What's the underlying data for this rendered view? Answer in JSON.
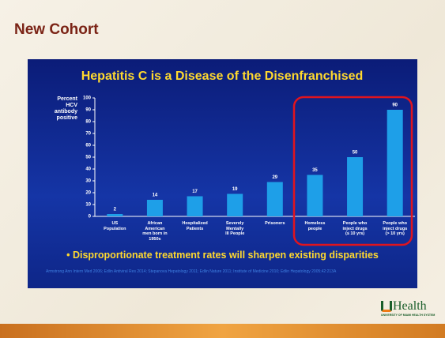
{
  "slide_title": "New Cohort",
  "chart_data": {
    "type": "bar",
    "title": "Hepatitis C is a Disease of the Disenfranchised",
    "y_label": "Percent\nHCV\nantibody\npositive",
    "categories": [
      "US\nPopulation",
      "African\nAmerican\nmen born in\n1950s",
      "Hospitalized\nPatients",
      "Severely\nMentally\nIll People",
      "Prisoners",
      "Homeless\npeople",
      "People who\ninject drugs\n(≤ 10 yrs)",
      "People who\ninject drugs\n(> 10 yrs)"
    ],
    "values": [
      2,
      14,
      17,
      19,
      29,
      35,
      50,
      90
    ],
    "color": "#1e9fe8",
    "ylim": [
      0,
      100
    ],
    "yticks": [
      0,
      10,
      20,
      30,
      40,
      50,
      60,
      70,
      80,
      90,
      100
    ],
    "grid": false
  },
  "bullet": "• Disproportionate treatment rates will sharpen existing disparities",
  "footnote": "Armstrong Ann Intern Med 2006; Edlin Antiviral Res 2014; Stepanova Hepatology 2011; Edlin Nature 2011; Institute of Medicine 2010; Edlin Hepatology 2005;42:213A",
  "logo": {
    "name": "Health",
    "subtitle": "UNIVERSITY OF MIAMI HEALTH SYSTEM"
  }
}
